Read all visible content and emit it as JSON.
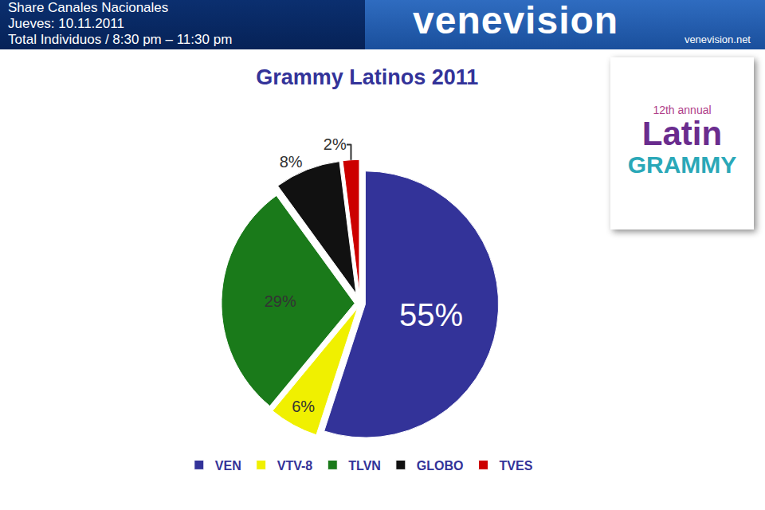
{
  "header": {
    "lines": [
      "Share Canales Nacionales",
      "Jueves: 10.11.2011",
      "Total Individuos  / 8:30 pm – 11:30 pm"
    ],
    "brand": "venevision",
    "brand_url": "venevision.net"
  },
  "badge": {
    "lines": [
      "12th annual",
      "Latin",
      "GRAMMY"
    ]
  },
  "chart_data": {
    "type": "pie",
    "title": "Grammy Latinos 2011",
    "categories": [
      "VEN",
      "VTV-8",
      "TLVN",
      "GLOBO",
      "TVES"
    ],
    "values": [
      55,
      6,
      29,
      8,
      2
    ],
    "value_labels": [
      "55%",
      "6%",
      "29%",
      "8%",
      "2%"
    ],
    "colors": [
      "#333399",
      "#f0f000",
      "#1a7a1a",
      "#111111",
      "#cc0000"
    ],
    "data_labels": true,
    "legend": "bottom"
  }
}
